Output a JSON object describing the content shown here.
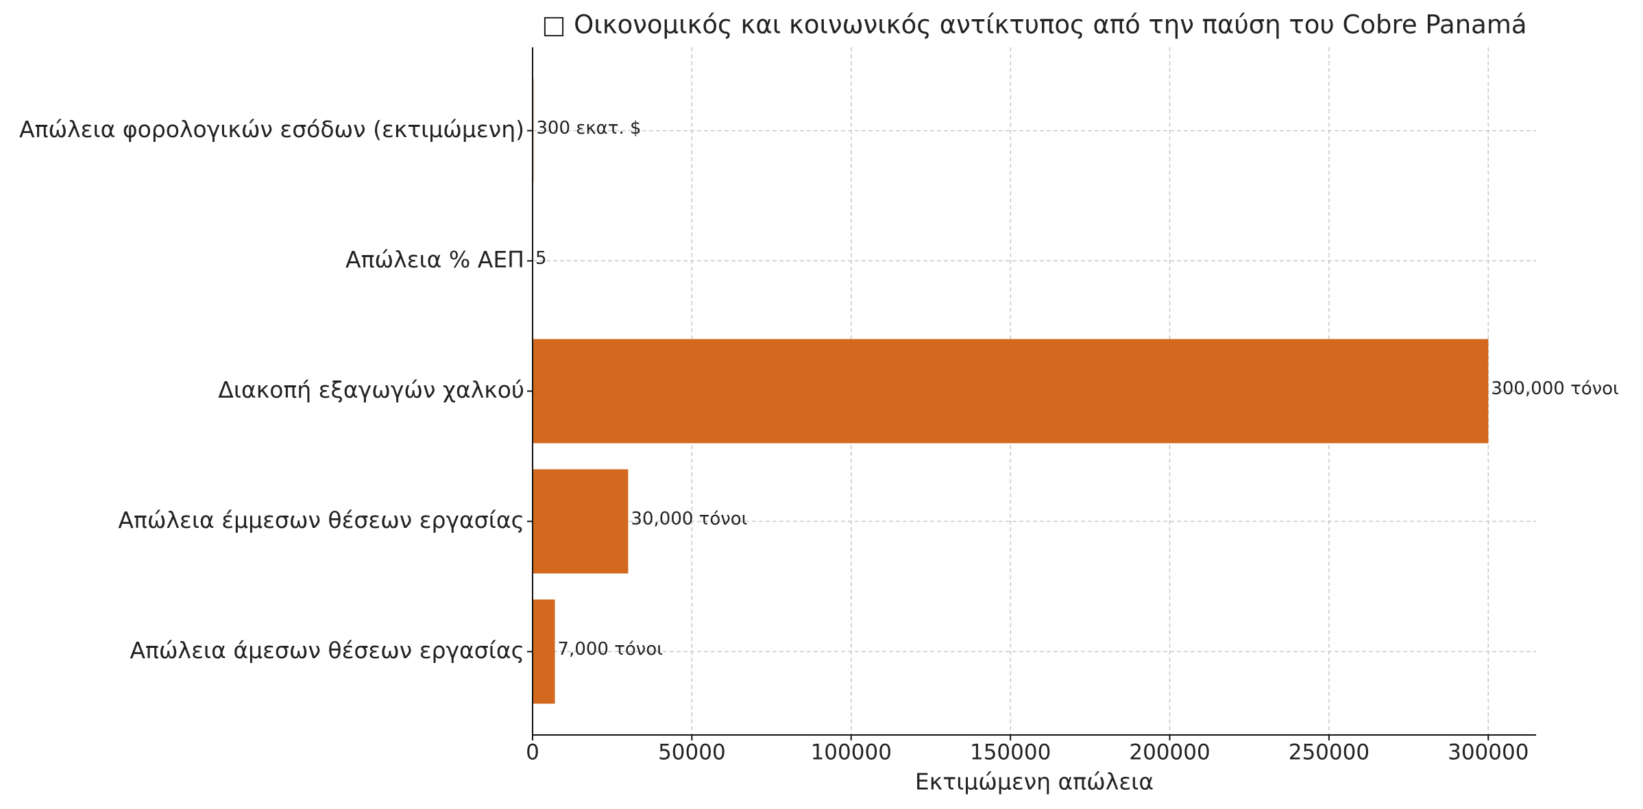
{
  "chart_data": {
    "type": "barh",
    "title": "□ Οικονομικός και κοινωνικός αντίκτυπος από την παύση του Cobre Panamá",
    "xlabel": "Εκτιμώμενη απώλεια",
    "categories": [
      "Απώλεια φορολογικών εσόδων (εκτιμώμενη)",
      "Απώλεια % ΑΕΠ",
      "Διακοπή εξαγωγών χαλκού",
      "Απώλεια έμμεσων θέσεων εργασίας",
      "Απώλεια άμεσων θέσεων εργασίας"
    ],
    "values": [
      300,
      5,
      300000,
      30000,
      7000
    ],
    "value_labels": [
      "300 εκατ. $",
      "5",
      "300,000 τόνοι",
      "30,000 τόνοι",
      "7,000 τόνοι"
    ],
    "color": "#d2691e",
    "xlim": [
      0,
      315000
    ],
    "xticks": [
      0,
      50000,
      100000,
      150000,
      200000,
      250000,
      300000
    ],
    "grid": true
  }
}
